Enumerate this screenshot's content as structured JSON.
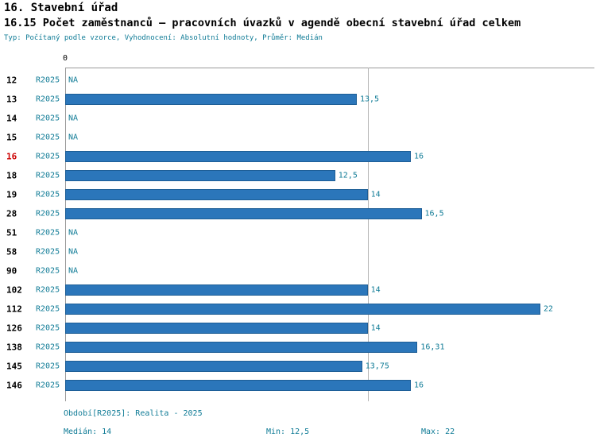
{
  "header": {
    "title": "16. Stavební úřad",
    "subtitle": "16.15 Počet zaměstnanců – pracovních úvazků v agendě obecní stavební úřad celkem",
    "meta": "Typ: Počítaný podle vzorce, Vyhodnocení: Absolutní hodnoty, Průměr: Medián"
  },
  "chart_data": {
    "type": "bar",
    "orientation": "horizontal",
    "title": "16.15 Počet zaměstnanců – pracovních úvazků v agendě obecní stavební úřad celkem",
    "categories": [
      "12",
      "13",
      "14",
      "15",
      "16",
      "18",
      "19",
      "28",
      "51",
      "58",
      "90",
      "102",
      "112",
      "126",
      "138",
      "145",
      "146"
    ],
    "period_label": "R2025",
    "values": [
      null,
      13.5,
      null,
      null,
      16,
      12.5,
      14,
      16.5,
      null,
      null,
      null,
      14,
      22,
      14,
      16.31,
      13.75,
      16
    ],
    "value_labels": [
      "NA",
      "13,5",
      "NA",
      "NA",
      "16",
      "12,5",
      "14",
      "16,5",
      "NA",
      "NA",
      "NA",
      "14",
      "22",
      "14",
      "16,31",
      "13,75",
      "16"
    ],
    "na_label": "NA",
    "highlight_category": "16",
    "axis": {
      "origin_label": "0",
      "median_line_value": 14
    },
    "xlim": [
      0,
      24.5
    ],
    "grid": "median-line-only",
    "legend": "none",
    "stats": {
      "median": 14,
      "min": 12.5,
      "max": 22
    },
    "colors": {
      "bar": "#2b76ba",
      "bar_border": "#1d5e96",
      "teal_text": "#0f7b96",
      "highlight": "#cc0000",
      "grid_line": "#9a9a9a"
    }
  },
  "footer": {
    "period": "Období[R2025]: Realita - 2025",
    "median": "Medián: 14",
    "min": "Min: 12,5",
    "max": "Max: 22"
  }
}
